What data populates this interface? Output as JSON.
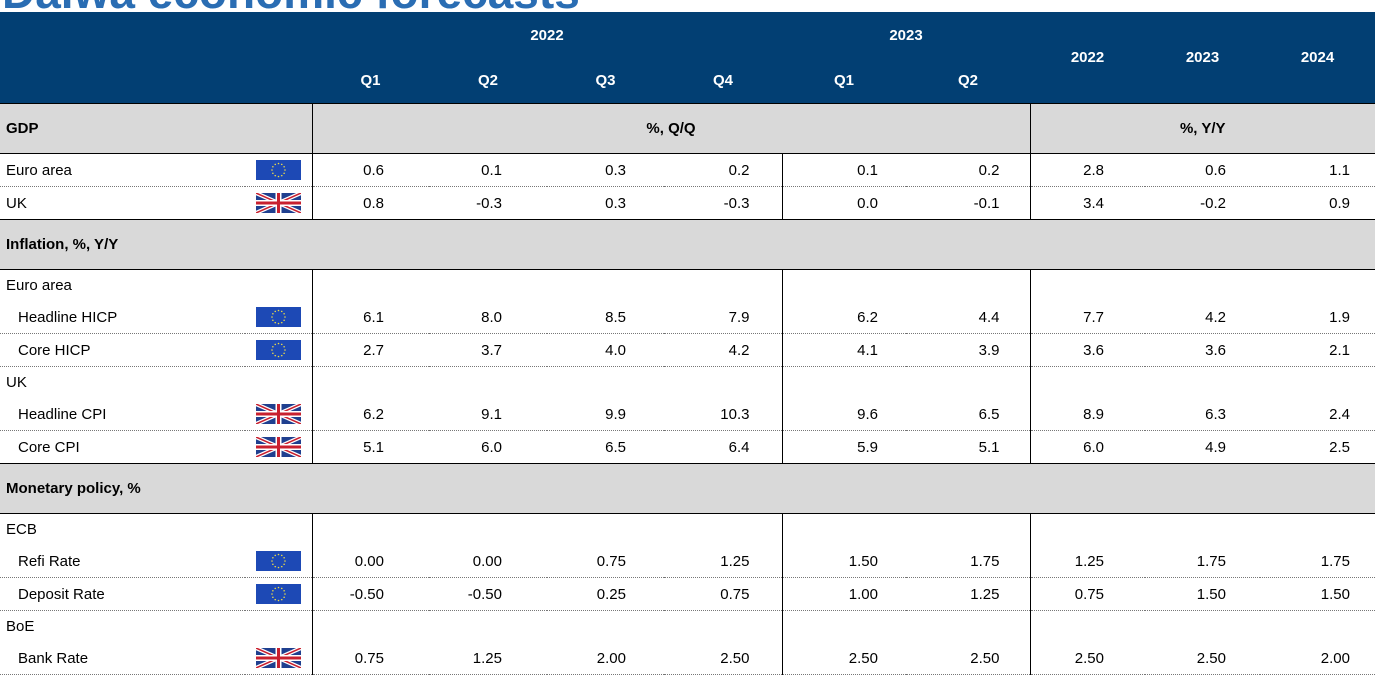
{
  "title": "Daiwa economic forecasts",
  "header": {
    "quarter_years": [
      "2022",
      "2023"
    ],
    "quarters": [
      "Q1",
      "Q2",
      "Q3",
      "Q4",
      "Q1",
      "Q2"
    ],
    "annual": [
      "2022",
      "2023",
      "2024"
    ]
  },
  "sections": [
    {
      "title": "GDP",
      "quarterly_unit": "%, Q/Q",
      "annual_unit": "%, Y/Y",
      "rows": [
        {
          "label": "Euro area",
          "flag": "eu",
          "values": [
            "0.6",
            "0.1",
            "0.3",
            "0.2",
            "0.1",
            "0.2",
            "2.8",
            "0.6",
            "1.1"
          ]
        },
        {
          "label": "UK",
          "flag": "uk",
          "values": [
            "0.8",
            "-0.3",
            "0.3",
            "-0.3",
            "0.0",
            "-0.1",
            "3.4",
            "-0.2",
            "0.9"
          ]
        }
      ]
    },
    {
      "title": "Inflation, %, Y/Y",
      "rows": [
        {
          "label": "Euro area",
          "rows": [
            {
              "label": "Headline HICP",
              "flag": "eu",
              "values": [
                "6.1",
                "8.0",
                "8.5",
                "7.9",
                "6.2",
                "4.4",
                "7.7",
                "4.2",
                "1.9"
              ]
            },
            {
              "label": "Core HICP",
              "flag": "eu",
              "values": [
                "2.7",
                "3.7",
                "4.0",
                "4.2",
                "4.1",
                "3.9",
                "3.6",
                "3.6",
                "2.1"
              ]
            }
          ]
        },
        {
          "label": "UK",
          "rows": [
            {
              "label": "Headline CPI",
              "flag": "uk",
              "values": [
                "6.2",
                "9.1",
                "9.9",
                "10.3",
                "9.6",
                "6.5",
                "8.9",
                "6.3",
                "2.4"
              ]
            },
            {
              "label": "Core CPI",
              "flag": "uk",
              "values": [
                "5.1",
                "6.0",
                "6.5",
                "6.4",
                "5.9",
                "5.1",
                "6.0",
                "4.9",
                "2.5"
              ]
            }
          ]
        }
      ]
    },
    {
      "title": "Monetary policy, %",
      "rows": [
        {
          "label": "ECB",
          "rows": [
            {
              "label": "Refi Rate",
              "flag": "eu",
              "values": [
                "0.00",
                "0.00",
                "0.75",
                "1.25",
                "1.50",
                "1.75",
                "1.25",
                "1.75",
                "1.75"
              ]
            },
            {
              "label": "Deposit Rate",
              "flag": "eu",
              "values": [
                "-0.50",
                "-0.50",
                "0.25",
                "0.75",
                "1.00",
                "1.25",
                "0.75",
                "1.50",
                "1.50"
              ]
            }
          ]
        },
        {
          "label": "BoE",
          "rows": [
            {
              "label": "Bank Rate",
              "flag": "uk",
              "values": [
                "0.75",
                "1.25",
                "2.00",
                "2.50",
                "2.50",
                "2.50",
                "2.50",
                "2.50",
                "2.00"
              ]
            }
          ]
        }
      ]
    }
  ]
}
